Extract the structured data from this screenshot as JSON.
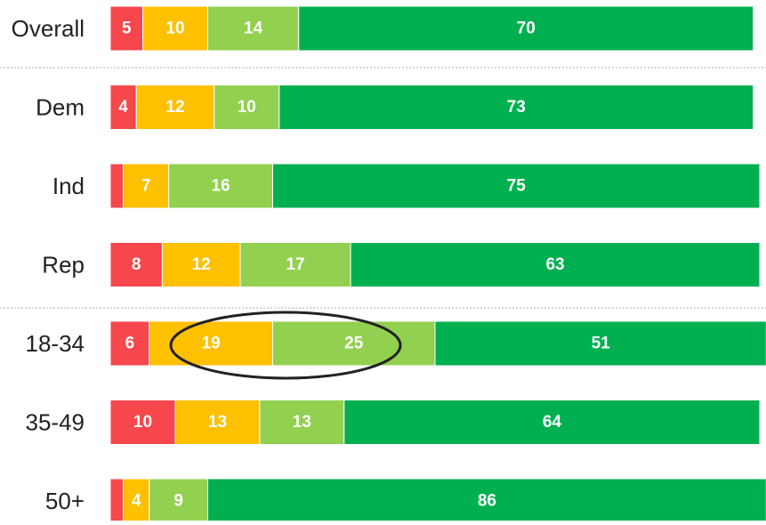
{
  "chart_data": {
    "type": "stacked-bar-horizontal",
    "categories": [
      "Overall",
      "Dem",
      "Ind",
      "Rep",
      "18-34",
      "35-49",
      "50+"
    ],
    "series": [
      {
        "color": "#f5474c",
        "values": [
          5,
          4,
          2,
          8,
          6,
          10,
          2
        ]
      },
      {
        "color": "#ffc000",
        "values": [
          10,
          12,
          7,
          12,
          19,
          13,
          4
        ]
      },
      {
        "color": "#92d050",
        "values": [
          14,
          10,
          16,
          17,
          25,
          13,
          9
        ]
      },
      {
        "color": "#00b050",
        "values": [
          70,
          73,
          75,
          63,
          51,
          64,
          86
        ]
      }
    ]
  }
}
